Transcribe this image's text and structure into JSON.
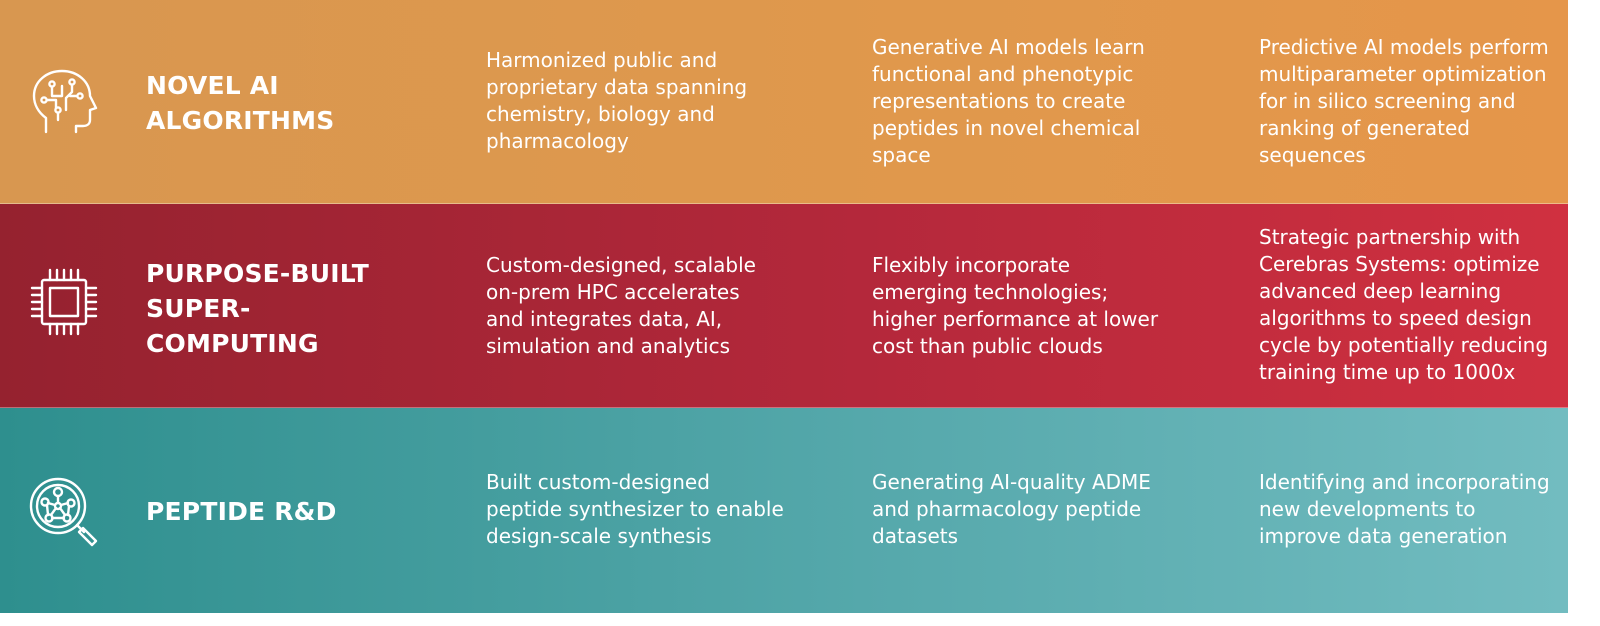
{
  "rows": [
    {
      "icon": "ai-head-circuit-icon",
      "heading": [
        "NOVEL AI",
        "ALGORITHMS"
      ],
      "cells": [
        [
          "Harmonized public and",
          "proprietary data spanning",
          "chemistry, biology and",
          "pharmacology"
        ],
        [
          "Generative AI models learn",
          "functional and phenotypic",
          "representations to create",
          "peptides in novel chemical",
          "space"
        ],
        [
          "Predictive AI models perform",
          "multiparameter optimization",
          "for in silico screening and",
          "ranking of generated",
          "sequences"
        ]
      ]
    },
    {
      "icon": "cpu-chip-icon",
      "heading": [
        "PURPOSE-BUILT",
        "SUPER-",
        "COMPUTING"
      ],
      "cells": [
        [
          "Custom-designed, scalable",
          "on-prem HPC accelerates",
          "and integrates data, AI,",
          "simulation and analytics"
        ],
        [
          "Flexibly incorporate",
          "emerging technologies;",
          "higher performance at lower",
          "cost than public clouds"
        ],
        [
          "Strategic partnership with",
          "Cerebras Systems: optimize",
          "advanced deep learning",
          "algorithms to speed design",
          "cycle by potentially reducing",
          "training time up to 1000x"
        ]
      ]
    },
    {
      "icon": "molecule-magnifier-icon",
      "heading": [
        "PEPTIDE R&D"
      ],
      "cells": [
        [
          "Built custom-designed",
          "peptide synthesizer to enable",
          "design-scale synthesis"
        ],
        [
          "Generating AI-quality ADME",
          "and pharmacology peptide",
          "datasets"
        ],
        [
          "Identifying and incorporating",
          "new developments to",
          "improve data generation"
        ]
      ]
    }
  ]
}
